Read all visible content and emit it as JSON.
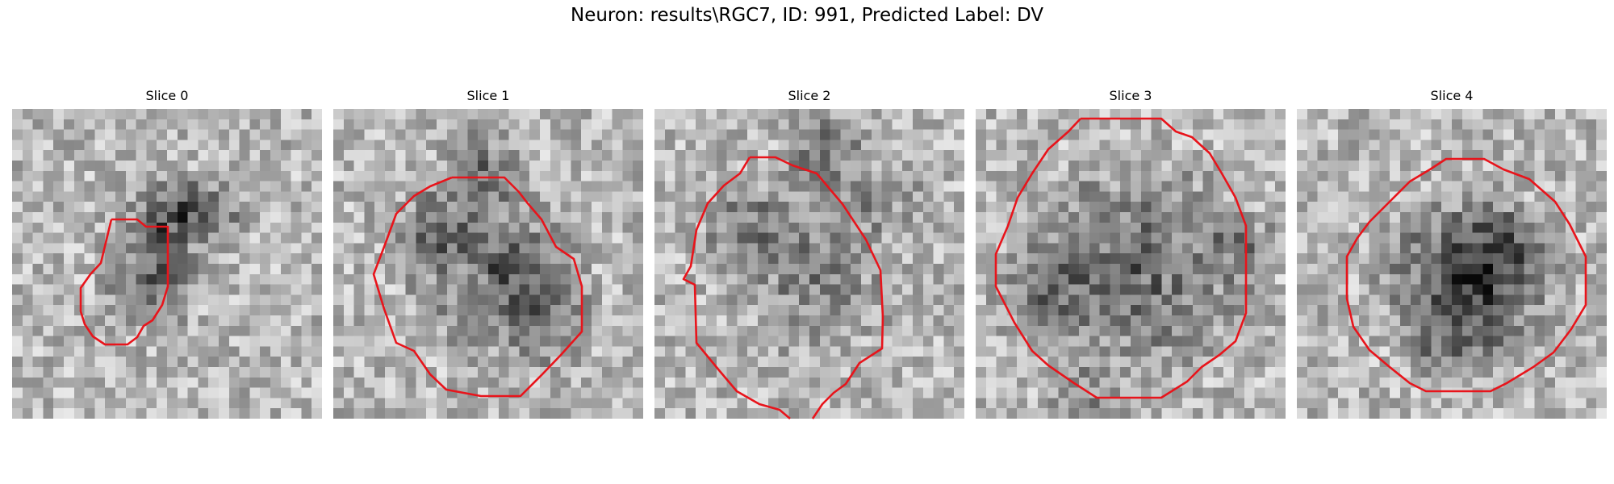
{
  "figure": {
    "title": "Neuron: results\\RGC7, ID: 991, Predicted Label: DV"
  },
  "colors": {
    "contour": "#e8141b",
    "background": "#ffffff"
  },
  "panels": [
    {
      "title": "Slice 0"
    },
    {
      "title": "Slice 1"
    },
    {
      "title": "Slice 2"
    },
    {
      "title": "Slice 3"
    },
    {
      "title": "Slice 4"
    }
  ]
}
